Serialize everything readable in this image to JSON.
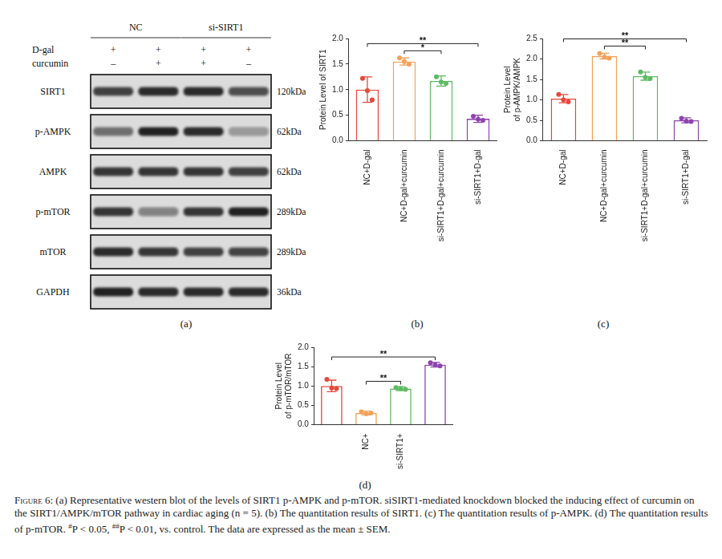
{
  "blot": {
    "panel": "(a)",
    "groups": [
      {
        "label": "NC",
        "lanes": [
          0,
          1
        ]
      },
      {
        "label": "si-SIRT1",
        "lanes": [
          2,
          3
        ]
      }
    ],
    "treatments": [
      {
        "label": "D-gal",
        "signs": [
          "+",
          "+",
          "+",
          "+"
        ]
      },
      {
        "label": "curcumin",
        "signs": [
          "–",
          "+",
          "+",
          "–"
        ]
      }
    ],
    "bands": [
      {
        "label": "SIRT1",
        "size": "120kDa",
        "intensity": [
          0.8,
          0.9,
          0.9,
          0.7
        ]
      },
      {
        "label": "p-AMPK",
        "size": "62kDa",
        "intensity": [
          0.55,
          0.95,
          0.9,
          0.35
        ]
      },
      {
        "label": "AMPK",
        "size": "62kDa",
        "intensity": [
          0.85,
          0.85,
          0.85,
          0.8
        ]
      },
      {
        "label": "p-mTOR",
        "size": "289kDa",
        "intensity": [
          0.85,
          0.45,
          0.85,
          0.95
        ]
      },
      {
        "label": "mTOR",
        "size": "289kDa",
        "intensity": [
          0.9,
          0.85,
          0.8,
          0.75
        ]
      },
      {
        "label": "GAPDH",
        "size": "36kDa",
        "intensity": [
          0.95,
          0.9,
          0.9,
          0.9
        ]
      }
    ]
  },
  "chart_data": [
    {
      "type": "bar",
      "panel": "(b)",
      "y_label": "Protein Level of SIRT1",
      "categories": [
        "NC+D-gal",
        "NC+D-gal+curcumin",
        "si-SIRT1+D-gal+curcumin",
        "si-SIRT1+D-gal"
      ],
      "values": [
        1.0,
        1.55,
        1.17,
        0.43
      ],
      "errors": [
        0.25,
        0.07,
        0.1,
        0.07
      ],
      "points": [
        [
          1.22,
          0.98,
          0.8
        ],
        [
          1.62,
          1.55,
          1.5
        ],
        [
          1.25,
          1.15,
          1.12
        ],
        [
          0.48,
          0.42,
          0.4
        ]
      ],
      "colors": [
        "#e8473b",
        "#f5a15a",
        "#5dbb63",
        "#8e44ad"
      ],
      "ylim": [
        0,
        2.0
      ],
      "yticks": [
        {
          "value": 0,
          "label": "0.0"
        },
        {
          "value": 0.5,
          "label": "0.5"
        },
        {
          "value": 1.0,
          "label": "1.0"
        },
        {
          "value": 1.5,
          "label": "1.5"
        },
        {
          "value": 2.0,
          "label": "2.0"
        }
      ],
      "significance": [
        {
          "from": 0,
          "to": 3,
          "label": "**"
        },
        {
          "from": 1,
          "to": 2,
          "label": "*"
        }
      ],
      "grid": false
    },
    {
      "type": "bar",
      "panel": "(c)",
      "y_label": "Protein Level of p-AMPK/AMPK",
      "categories": [
        "NC+D-gal",
        "NC+D-gal+curcumin",
        "si-SIRT1+D-gal+curcumin",
        "si-SIRT1+D-gal"
      ],
      "values": [
        1.03,
        2.07,
        1.58,
        0.5
      ],
      "errors": [
        0.1,
        0.07,
        0.1,
        0.06
      ],
      "points": [
        [
          1.13,
          1.0,
          0.95
        ],
        [
          2.13,
          2.05,
          2.02
        ],
        [
          1.68,
          1.55,
          1.52
        ],
        [
          0.55,
          0.48,
          0.47
        ]
      ],
      "colors": [
        "#e8473b",
        "#f5a15a",
        "#5dbb63",
        "#8e44ad"
      ],
      "ylim": [
        0,
        2.5
      ],
      "yticks": [
        {
          "value": 0,
          "label": "0.0"
        },
        {
          "value": 0.5,
          "label": "0.5"
        },
        {
          "value": 1.0,
          "label": "1.0"
        },
        {
          "value": 1.5,
          "label": "1.5"
        },
        {
          "value": 2.0,
          "label": "2.0"
        },
        {
          "value": 2.5,
          "label": "2.5"
        }
      ],
      "significance": [
        {
          "from": 0,
          "to": 3,
          "label": "**"
        },
        {
          "from": 1,
          "to": 2,
          "label": "**"
        }
      ],
      "grid": false
    },
    {
      "type": "bar",
      "panel": "(d)",
      "y_label": "Protein Level of p-mTOR/mTOR",
      "categories": [
        null,
        "NC+",
        "si-SIRT1+",
        null
      ],
      "values": [
        1.0,
        0.3,
        0.93,
        1.55
      ],
      "errors": [
        0.15,
        0.05,
        0.05,
        0.06
      ],
      "points": [
        [
          1.17,
          0.95,
          0.93
        ],
        [
          0.33,
          0.28,
          0.3
        ],
        [
          0.96,
          0.93,
          0.91
        ],
        [
          1.6,
          1.55,
          1.52
        ]
      ],
      "colors": [
        "#e8473b",
        "#f5a15a",
        "#5dbb63",
        "#8e44ad"
      ],
      "ylim": [
        0,
        2.0
      ],
      "yticks": [
        {
          "value": 0,
          "label": "0.0"
        },
        {
          "value": 0.5,
          "label": "0.5"
        },
        {
          "value": 1.0,
          "label": "1.0"
        },
        {
          "value": 1.5,
          "label": "1.5"
        },
        {
          "value": 2.0,
          "label": "2.0"
        }
      ],
      "significance": [
        {
          "from": 0,
          "to": 3,
          "label": "**"
        },
        {
          "from": 1,
          "to": 2,
          "label": "**"
        }
      ],
      "grid": false
    }
  ],
  "caption": {
    "label": "Figure 6:",
    "text": "(a) Representative western blot of the levels of SIRT1 p-AMPK and p-mTOR. siSIRT1-mediated knockdown blocked the inducing effect of curcumin on the SIRT1/AMPK/mTOR pathway in cardiac aging (n = 5). (b) The quantitation results of SIRT1. (c) The quantitation results of p-AMPK. (d) The quantitation results of p-mTOR. #P < 0.05, ##P < 0.01, vs. control. The data are expressed as the mean ± SEM."
  }
}
